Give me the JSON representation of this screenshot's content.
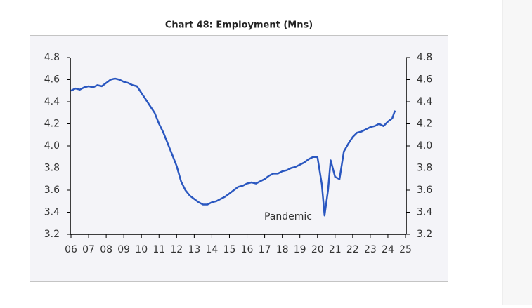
{
  "chart_data": {
    "type": "line",
    "title": "Chart 48: Employment (Mns)",
    "annotation": "Pandemic",
    "color": "#2a57c0",
    "xlim": [
      6,
      25
    ],
    "xticks": [
      {
        "value": 6,
        "label": "06"
      },
      {
        "value": 7,
        "label": "07"
      },
      {
        "value": 8,
        "label": "08"
      },
      {
        "value": 9,
        "label": "09"
      },
      10,
      11,
      12,
      13,
      14,
      15,
      16,
      17,
      18,
      19,
      20,
      21,
      22,
      23,
      24,
      25
    ],
    "ylim": [
      3.2,
      4.8
    ],
    "yticks": [
      3.2,
      3.4,
      3.6,
      3.8,
      {
        "value": 4,
        "label": "4.0"
      },
      4.2,
      4.4,
      4.6,
      4.8
    ],
    "y2lim": [
      3.2,
      4.8
    ],
    "y2ticks": [
      3.2,
      3.4,
      3.6,
      3.8,
      {
        "value": 4,
        "label": "4.0"
      },
      4.2,
      4.4,
      4.6,
      4.8
    ],
    "x": [
      6.0,
      6.25,
      6.5,
      6.75,
      7.0,
      7.25,
      7.5,
      7.75,
      8.0,
      8.25,
      8.5,
      8.75,
      9.0,
      9.25,
      9.5,
      9.75,
      10.0,
      10.25,
      10.5,
      10.75,
      11.0,
      11.25,
      11.5,
      11.75,
      12.0,
      12.25,
      12.5,
      12.75,
      13.0,
      13.25,
      13.5,
      13.75,
      14.0,
      14.25,
      14.5,
      14.75,
      15.0,
      15.25,
      15.5,
      15.75,
      16.0,
      16.25,
      16.5,
      16.75,
      17.0,
      17.25,
      17.5,
      17.75,
      18.0,
      18.25,
      18.5,
      18.75,
      19.0,
      19.25,
      19.5,
      19.75,
      20.0,
      20.25,
      20.4,
      20.6,
      20.75,
      21.0,
      21.25,
      21.5,
      21.75,
      22.0,
      22.25,
      22.5,
      22.75,
      23.0,
      23.25,
      23.5,
      23.75,
      24.0,
      24.25,
      24.4
    ],
    "series": [
      {
        "name": "Employment",
        "color": "#2a57c0",
        "values": [
          4.5,
          4.52,
          4.51,
          4.53,
          4.54,
          4.53,
          4.55,
          4.54,
          4.57,
          4.6,
          4.61,
          4.6,
          4.58,
          4.57,
          4.55,
          4.54,
          4.48,
          4.42,
          4.36,
          4.3,
          4.2,
          4.12,
          4.02,
          3.92,
          3.82,
          3.68,
          3.6,
          3.55,
          3.52,
          3.49,
          3.47,
          3.47,
          3.49,
          3.5,
          3.52,
          3.54,
          3.57,
          3.6,
          3.63,
          3.64,
          3.66,
          3.67,
          3.66,
          3.68,
          3.7,
          3.73,
          3.75,
          3.75,
          3.77,
          3.78,
          3.8,
          3.81,
          3.83,
          3.85,
          3.88,
          3.9,
          3.9,
          3.65,
          3.37,
          3.6,
          3.87,
          3.72,
          3.7,
          3.95,
          4.02,
          4.08,
          4.12,
          4.13,
          4.15,
          4.17,
          4.18,
          4.2,
          4.18,
          4.22,
          4.25,
          4.32
        ]
      }
    ]
  }
}
